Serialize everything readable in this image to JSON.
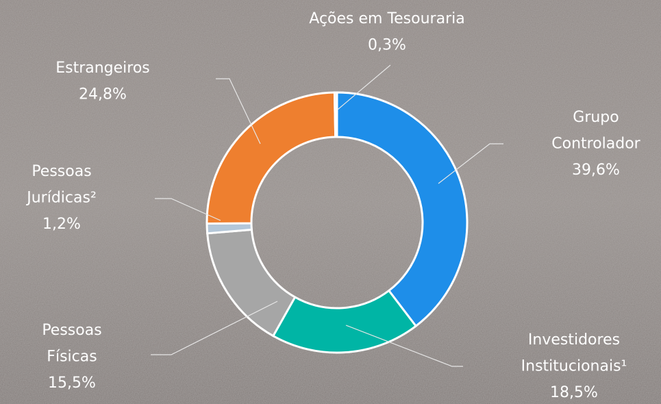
{
  "chart_data": {
    "type": "donut",
    "categories": [
      "Grupo Controlador",
      "Investidores Institucionais¹",
      "Pessoas Físicas",
      "Pessoas Jurídicas²",
      "Estrangeiros",
      "Ações em Tesouraria"
    ],
    "values": [
      39.6,
      18.5,
      15.5,
      1.2,
      24.8,
      0.3
    ],
    "value_labels": [
      "39,6%",
      "18,5%",
      "15,5%",
      "1,2%",
      "24,8%",
      "0,3%"
    ],
    "colors": [
      "#1e8ee9",
      "#00b5a5",
      "#a6a6a6",
      "#b4c7d8",
      "#ee7f2f",
      "#dfe5ea"
    ]
  }
}
